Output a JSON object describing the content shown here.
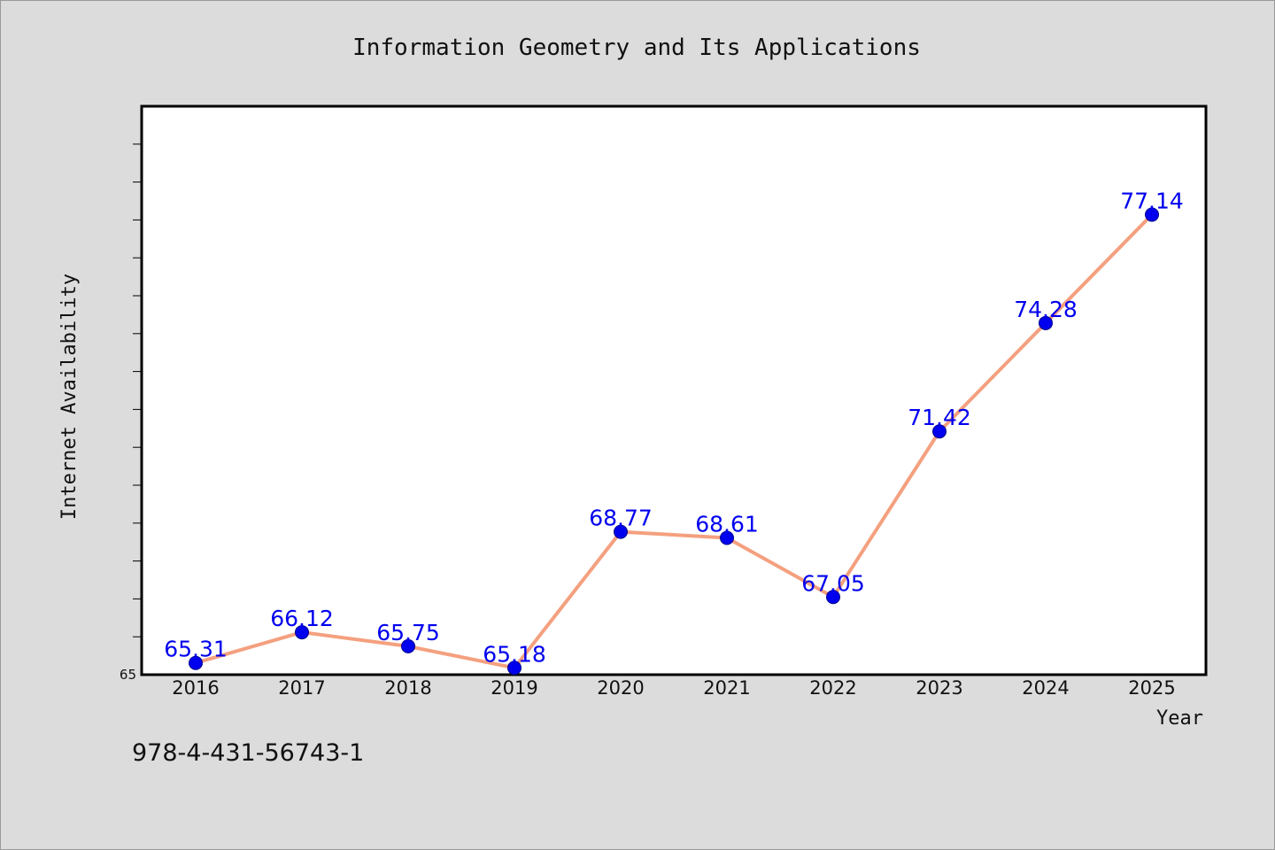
{
  "chart_data": {
    "type": "line",
    "title": "Information Geometry and Its Applications",
    "xlabel": "Year",
    "ylabel": "Internet Availability",
    "categories": [
      "2016",
      "2017",
      "2018",
      "2019",
      "2020",
      "2021",
      "2022",
      "2023",
      "2024",
      "2025"
    ],
    "values": [
      65.31,
      66.12,
      65.75,
      65.18,
      68.77,
      68.61,
      67.05,
      71.42,
      74.28,
      77.14
    ],
    "ylim": [
      65,
      80
    ],
    "yticks_labeled": [
      "65"
    ],
    "grid": false,
    "line_color": "#f4a07f",
    "marker_color": "#0000ee",
    "label_color": "#0000ee"
  },
  "footer": {
    "isbn": "978-4-431-56743-1"
  }
}
